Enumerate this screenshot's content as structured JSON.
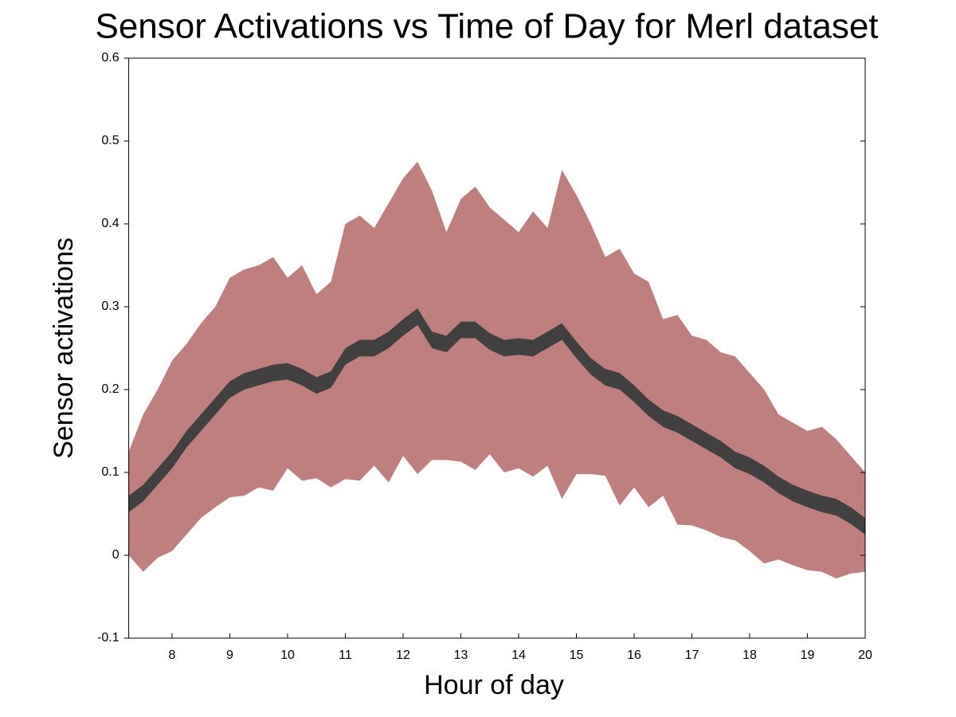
{
  "chart_data": {
    "type": "band",
    "title": "Sensor Activations vs Time of Day for Merl dataset",
    "xlabel": "Hour of day",
    "ylabel": "Sensor activations",
    "xlim": [
      7.25,
      20
    ],
    "xticks": [
      8,
      9,
      10,
      11,
      12,
      13,
      14,
      15,
      16,
      17,
      18,
      19,
      20
    ],
    "ylim": [
      -0.1,
      0.6
    ],
    "yticks": [
      -0.1,
      0,
      0.1,
      0.2,
      0.3,
      0.4,
      0.5,
      0.6
    ],
    "x": [
      7.25,
      7.5,
      7.75,
      8,
      8.25,
      8.5,
      8.75,
      9,
      9.25,
      9.5,
      9.75,
      10,
      10.25,
      10.5,
      10.75,
      11,
      11.25,
      11.5,
      11.75,
      12,
      12.25,
      12.5,
      12.75,
      13,
      13.25,
      13.5,
      13.75,
      14,
      14.25,
      14.5,
      14.75,
      15,
      15.25,
      15.5,
      15.75,
      16,
      16.25,
      16.5,
      16.75,
      17,
      17.25,
      17.5,
      17.75,
      18,
      18.25,
      18.5,
      18.75,
      19,
      19.25,
      19.5,
      19.75,
      20
    ],
    "bands": [
      {
        "color": "#bf7f7f",
        "lower": [
          0,
          -0.02,
          -0.003,
          0.005,
          0.025,
          0.045,
          0.058,
          0.07,
          0.072,
          0.082,
          0.078,
          0.105,
          0.09,
          0.093,
          0.082,
          0.092,
          0.09,
          0.108,
          0.088,
          0.12,
          0.098,
          0.115,
          0.115,
          0.113,
          0.103,
          0.122,
          0.1,
          0.105,
          0.095,
          0.108,
          0.068,
          0.098,
          0.098,
          0.096,
          0.06,
          0.082,
          0.058,
          0.072,
          0.037,
          0.036,
          0.03,
          0.022,
          0.018,
          0.005,
          -0.01,
          -0.005,
          -0.012,
          -0.018,
          -0.02,
          -0.028,
          -0.022,
          -0.02
        ],
        "upper": [
          0.125,
          0.17,
          0.2,
          0.235,
          0.255,
          0.28,
          0.3,
          0.335,
          0.345,
          0.35,
          0.36,
          0.335,
          0.35,
          0.315,
          0.33,
          0.4,
          0.41,
          0.395,
          0.425,
          0.455,
          0.475,
          0.44,
          0.39,
          0.43,
          0.445,
          0.42,
          0.405,
          0.39,
          0.415,
          0.395,
          0.465,
          0.435,
          0.4,
          0.36,
          0.37,
          0.34,
          0.33,
          0.285,
          0.29,
          0.265,
          0.26,
          0.245,
          0.24,
          0.22,
          0.2,
          0.17,
          0.16,
          0.15,
          0.155,
          0.14,
          0.12,
          0.1
        ]
      },
      {
        "color": "#404040",
        "lower": [
          0.052,
          0.065,
          0.085,
          0.105,
          0.13,
          0.15,
          0.17,
          0.19,
          0.2,
          0.205,
          0.21,
          0.212,
          0.205,
          0.195,
          0.202,
          0.23,
          0.24,
          0.24,
          0.25,
          0.265,
          0.278,
          0.25,
          0.245,
          0.262,
          0.262,
          0.248,
          0.24,
          0.242,
          0.24,
          0.25,
          0.26,
          0.238,
          0.218,
          0.205,
          0.2,
          0.185,
          0.168,
          0.155,
          0.148,
          0.138,
          0.128,
          0.118,
          0.105,
          0.098,
          0.088,
          0.075,
          0.065,
          0.058,
          0.052,
          0.048,
          0.038,
          0.025
        ],
        "upper": [
          0.072,
          0.085,
          0.105,
          0.125,
          0.15,
          0.17,
          0.19,
          0.21,
          0.22,
          0.225,
          0.23,
          0.232,
          0.225,
          0.215,
          0.222,
          0.25,
          0.26,
          0.26,
          0.27,
          0.285,
          0.298,
          0.27,
          0.265,
          0.282,
          0.282,
          0.268,
          0.26,
          0.262,
          0.26,
          0.27,
          0.28,
          0.258,
          0.238,
          0.225,
          0.22,
          0.205,
          0.188,
          0.175,
          0.168,
          0.158,
          0.148,
          0.138,
          0.125,
          0.118,
          0.108,
          0.095,
          0.085,
          0.078,
          0.072,
          0.068,
          0.058,
          0.045
        ]
      }
    ]
  }
}
